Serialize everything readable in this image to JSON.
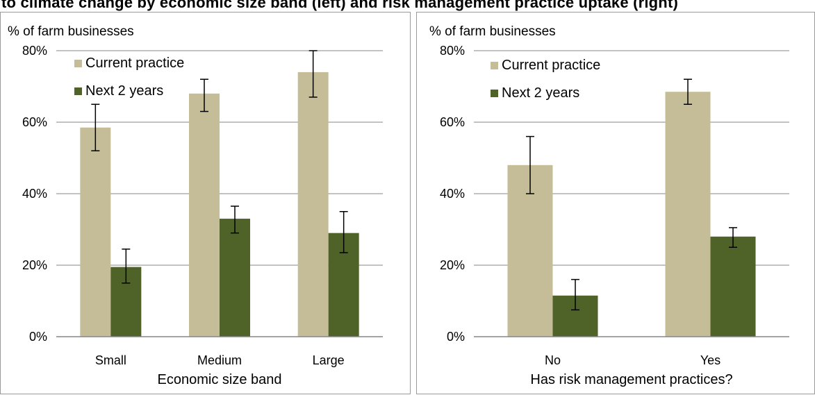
{
  "page_title": "to climate change by economic size band (left) and risk management practice uptake (right)",
  "colors": {
    "current": "#c4bd97",
    "next": "#4f6228",
    "grid": "#868686",
    "error_bar": "#000000"
  },
  "chart_data": [
    {
      "type": "bar",
      "title": "",
      "xlabel": "Economic size band",
      "ylabel": "% of farm businesses",
      "ylim": [
        0,
        80
      ],
      "yticks": [
        "0%",
        "20%",
        "40%",
        "60%",
        "80%"
      ],
      "grid": true,
      "legend_position": "top-left",
      "categories": [
        "Small",
        "Medium",
        "Large"
      ],
      "series": [
        {
          "name": "Current practice",
          "values": [
            58.5,
            68,
            74
          ],
          "error_low": [
            52,
            63,
            67
          ],
          "error_high": [
            65,
            72,
            80
          ]
        },
        {
          "name": "Next 2 years",
          "values": [
            19.5,
            33,
            29
          ],
          "error_low": [
            15,
            29,
            23.5
          ],
          "error_high": [
            24.5,
            36.5,
            35
          ]
        }
      ]
    },
    {
      "type": "bar",
      "title": "",
      "xlabel": "Has risk management practices?",
      "ylabel": "% of farm businesses",
      "ylim": [
        0,
        80
      ],
      "yticks": [
        "0%",
        "20%",
        "40%",
        "60%",
        "80%"
      ],
      "grid": true,
      "legend_position": "top-left",
      "categories": [
        "No",
        "Yes"
      ],
      "series": [
        {
          "name": "Current practice",
          "values": [
            48,
            68.5
          ],
          "error_low": [
            40,
            65
          ],
          "error_high": [
            56,
            72
          ]
        },
        {
          "name": "Next 2 years",
          "values": [
            11.5,
            28
          ],
          "error_low": [
            7.5,
            25
          ],
          "error_high": [
            16,
            30.5
          ]
        }
      ]
    }
  ]
}
